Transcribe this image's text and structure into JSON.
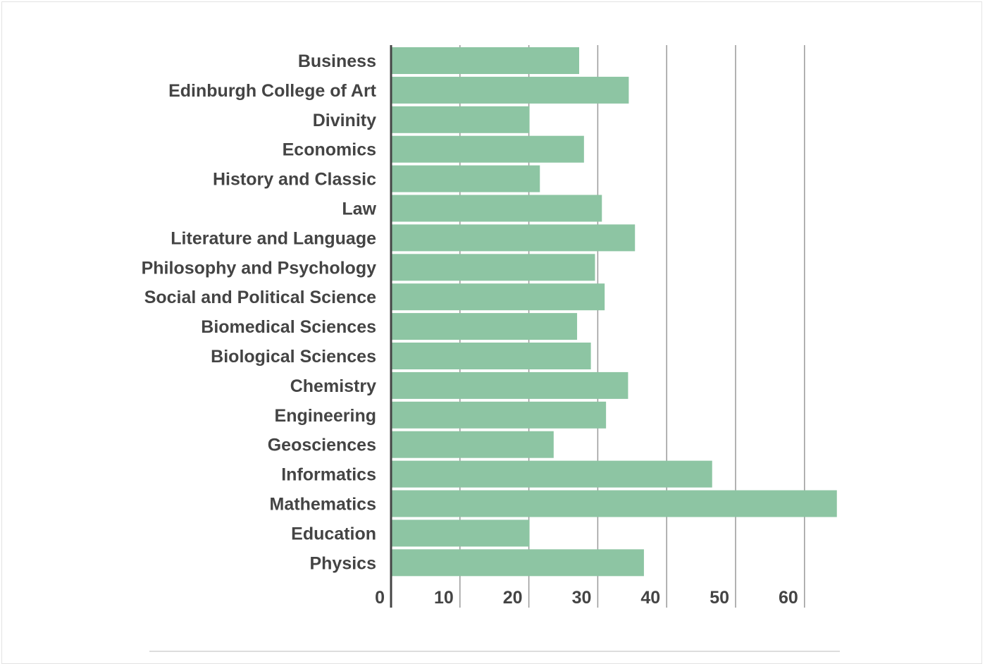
{
  "chart_data": {
    "type": "bar",
    "orientation": "horizontal",
    "title": "",
    "xlabel": "",
    "ylabel": "",
    "categories": [
      "Business",
      "Edinburgh College of Art",
      "Divinity",
      "Economics",
      "History and Classic",
      "Law",
      "Literature and Language",
      "Philosophy and Psychology",
      "Social and Political Science",
      "Biomedical Sciences",
      "Biological Sciences",
      "Chemistry",
      "Engineering",
      "Geosciences",
      "Informatics",
      "Mathematics",
      "Education",
      "Physics"
    ],
    "values": [
      27.3,
      34.5,
      20.1,
      28.0,
      21.6,
      30.6,
      35.4,
      29.6,
      31.0,
      27.0,
      29.0,
      34.4,
      31.2,
      23.6,
      46.6,
      64.7,
      20.1,
      36.7
    ],
    "xlim": [
      0,
      67
    ],
    "xticks": [
      0,
      10,
      20,
      30,
      40,
      50,
      60
    ],
    "xtick_labels": [
      "0",
      "10",
      "20",
      "30",
      "40",
      "50",
      "60"
    ],
    "grid": true,
    "legend": "none",
    "colors": {
      "bar": "#8dc5a3",
      "grid": "#999999",
      "axis": "#444444",
      "text": "#444444"
    }
  }
}
